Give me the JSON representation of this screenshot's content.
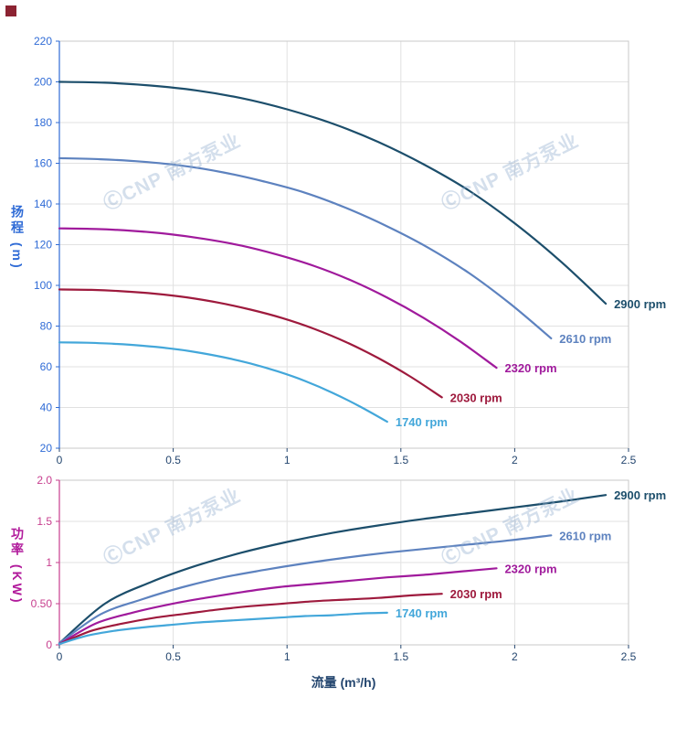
{
  "page": {
    "watermark_text": "ⒸCNP 南方泵业",
    "corner_color": "#8c2332"
  },
  "chart_data": [
    {
      "type": "line",
      "name": "head-flow-chart",
      "title": "",
      "xlabel": "",
      "ylabel": "扬程 (m)",
      "xlim": [
        0,
        2.5
      ],
      "ylim": [
        20,
        220
      ],
      "grid": true,
      "legend_position": "end-of-curve",
      "axis_color": "#2f6bd6",
      "tick_label_color": "#2f6bd6",
      "x_tick_color": "#24466f",
      "xticks": [
        [
          0,
          "0"
        ],
        [
          0.5,
          "0.5"
        ],
        [
          1,
          "1"
        ],
        [
          1.5,
          "1.5"
        ],
        [
          2,
          "2"
        ],
        [
          2.5,
          "2.5"
        ]
      ],
      "yticks": [
        [
          20,
          "20"
        ],
        [
          40,
          "40"
        ],
        [
          60,
          "60"
        ],
        [
          80,
          "80"
        ],
        [
          100,
          "100"
        ],
        [
          120,
          "120"
        ],
        [
          140,
          "140"
        ],
        [
          160,
          "160"
        ],
        [
          180,
          "180"
        ],
        [
          200,
          "200"
        ],
        [
          220,
          "220"
        ]
      ],
      "series": [
        {
          "name": "2900 rpm",
          "color": "#1c4e6b",
          "points": [
            [
              0,
              200
            ],
            [
              0.2,
              199.6
            ],
            [
              0.4,
              198.2
            ],
            [
              0.6,
              195.8
            ],
            [
              0.8,
              192
            ],
            [
              1,
              186.5
            ],
            [
              1.2,
              179.5
            ],
            [
              1.4,
              170.5
            ],
            [
              1.6,
              159.5
            ],
            [
              1.8,
              146.5
            ],
            [
              2,
              130.5
            ],
            [
              2.2,
              112
            ],
            [
              2.4,
              91
            ]
          ]
        },
        {
          "name": "2610 rpm",
          "color": "#5d82bf",
          "points": [
            [
              0,
              162.5
            ],
            [
              0.18,
              162
            ],
            [
              0.36,
              160.8
            ],
            [
              0.54,
              158.8
            ],
            [
              0.72,
              155.5
            ],
            [
              0.9,
              151
            ],
            [
              1.08,
              145.5
            ],
            [
              1.26,
              138
            ],
            [
              1.44,
              129
            ],
            [
              1.62,
              118.5
            ],
            [
              1.8,
              106
            ],
            [
              1.98,
              91
            ],
            [
              2.16,
              74
            ]
          ]
        },
        {
          "name": "2320 rpm",
          "color": "#a01a9c",
          "points": [
            [
              0,
              128
            ],
            [
              0.16,
              127.7
            ],
            [
              0.32,
              126.8
            ],
            [
              0.48,
              125.2
            ],
            [
              0.64,
              122.8
            ],
            [
              0.8,
              119.5
            ],
            [
              0.96,
              115
            ],
            [
              1.12,
              109.5
            ],
            [
              1.28,
              102.5
            ],
            [
              1.44,
              94
            ],
            [
              1.6,
              84
            ],
            [
              1.76,
              72.5
            ],
            [
              1.92,
              59.5
            ]
          ]
        },
        {
          "name": "2030 rpm",
          "color": "#9e1a3d",
          "points": [
            [
              0,
              98
            ],
            [
              0.14,
              97.8
            ],
            [
              0.28,
              97.1
            ],
            [
              0.42,
              95.9
            ],
            [
              0.56,
              94.1
            ],
            [
              0.7,
              91.5
            ],
            [
              0.84,
              88.1
            ],
            [
              0.98,
              83.9
            ],
            [
              1.12,
              78.6
            ],
            [
              1.26,
              72.1
            ],
            [
              1.4,
              64.3
            ],
            [
              1.54,
              55.3
            ],
            [
              1.68,
              45
            ]
          ]
        },
        {
          "name": "1740 rpm",
          "color": "#43a7da",
          "points": [
            [
              0,
              72
            ],
            [
              0.12,
              71.8
            ],
            [
              0.24,
              71.3
            ],
            [
              0.36,
              70.4
            ],
            [
              0.48,
              69.1
            ],
            [
              0.6,
              67.2
            ],
            [
              0.72,
              64.7
            ],
            [
              0.84,
              61.6
            ],
            [
              0.96,
              57.7
            ],
            [
              1.08,
              53
            ],
            [
              1.2,
              47.2
            ],
            [
              1.32,
              40.5
            ],
            [
              1.44,
              33
            ]
          ]
        }
      ]
    },
    {
      "type": "line",
      "name": "power-flow-chart",
      "title": "",
      "xlabel": "流量 (m³/h)",
      "ylabel": "功率 (KW)",
      "xlim": [
        0,
        2.5
      ],
      "ylim": [
        0,
        2
      ],
      "grid": true,
      "legend_position": "end-of-curve",
      "axis_color": "#c73e8e",
      "tick_label_color": "#c73e8e",
      "x_tick_color": "#24466f",
      "xticks": [
        [
          0,
          "0"
        ],
        [
          0.5,
          "0.5"
        ],
        [
          1,
          "1"
        ],
        [
          1.5,
          "1.5"
        ],
        [
          2,
          "2"
        ],
        [
          2.5,
          "2.5"
        ]
      ],
      "yticks": [
        [
          0,
          "0"
        ],
        [
          0.5,
          "0.50"
        ],
        [
          1,
          "1"
        ],
        [
          1.5,
          "1.5"
        ],
        [
          2,
          "2.0"
        ]
      ],
      "series": [
        {
          "name": "2900 rpm",
          "color": "#1c4e6b",
          "points": [
            [
              0,
              0.02
            ],
            [
              0.2,
              0.5
            ],
            [
              0.4,
              0.76
            ],
            [
              0.6,
              0.96
            ],
            [
              0.8,
              1.12
            ],
            [
              1,
              1.25
            ],
            [
              1.2,
              1.36
            ],
            [
              1.4,
              1.45
            ],
            [
              1.6,
              1.53
            ],
            [
              1.8,
              1.6
            ],
            [
              2,
              1.67
            ],
            [
              2.2,
              1.74
            ],
            [
              2.4,
              1.82
            ]
          ]
        },
        {
          "name": "2610 rpm",
          "color": "#5d82bf",
          "points": [
            [
              0,
              0.02
            ],
            [
              0.18,
              0.37
            ],
            [
              0.36,
              0.55
            ],
            [
              0.54,
              0.7
            ],
            [
              0.72,
              0.82
            ],
            [
              0.9,
              0.91
            ],
            [
              1.08,
              0.99
            ],
            [
              1.26,
              1.06
            ],
            [
              1.44,
              1.12
            ],
            [
              1.62,
              1.17
            ],
            [
              1.8,
              1.22
            ],
            [
              1.98,
              1.27
            ],
            [
              2.16,
              1.33
            ]
          ]
        },
        {
          "name": "2320 rpm",
          "color": "#a01a9c",
          "points": [
            [
              0,
              0.01
            ],
            [
              0.16,
              0.26
            ],
            [
              0.32,
              0.39
            ],
            [
              0.48,
              0.49
            ],
            [
              0.64,
              0.57
            ],
            [
              0.8,
              0.64
            ],
            [
              0.96,
              0.7
            ],
            [
              1.12,
              0.74
            ],
            [
              1.28,
              0.78
            ],
            [
              1.44,
              0.82
            ],
            [
              1.6,
              0.85
            ],
            [
              1.76,
              0.89
            ],
            [
              1.92,
              0.93
            ]
          ]
        },
        {
          "name": "2030 rpm",
          "color": "#9e1a3d",
          "points": [
            [
              0,
              0.01
            ],
            [
              0.14,
              0.17
            ],
            [
              0.28,
              0.26
            ],
            [
              0.42,
              0.33
            ],
            [
              0.56,
              0.38
            ],
            [
              0.7,
              0.43
            ],
            [
              0.84,
              0.47
            ],
            [
              0.98,
              0.5
            ],
            [
              1.12,
              0.53
            ],
            [
              1.26,
              0.55
            ],
            [
              1.4,
              0.57
            ],
            [
              1.54,
              0.6
            ],
            [
              1.68,
              0.62
            ]
          ]
        },
        {
          "name": "1740 rpm",
          "color": "#43a7da",
          "points": [
            [
              0,
              0.01
            ],
            [
              0.12,
              0.11
            ],
            [
              0.24,
              0.17
            ],
            [
              0.36,
              0.21
            ],
            [
              0.48,
              0.24
            ],
            [
              0.6,
              0.27
            ],
            [
              0.72,
              0.29
            ],
            [
              0.84,
              0.31
            ],
            [
              0.96,
              0.33
            ],
            [
              1.08,
              0.35
            ],
            [
              1.2,
              0.36
            ],
            [
              1.32,
              0.38
            ],
            [
              1.44,
              0.39
            ]
          ]
        }
      ]
    }
  ]
}
